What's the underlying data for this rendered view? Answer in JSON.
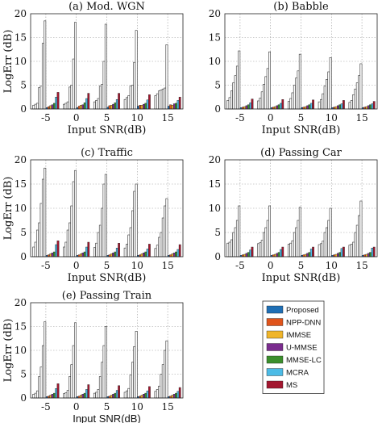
{
  "palette": {
    "outline_bar": "#ffffff",
    "Proposed": "#1f6fb5",
    "NPP-DNN": "#e0541b",
    "IMMSE": "#f0b52a",
    "U-MMSE": "#7a2c8e",
    "MMSE-LC": "#3b8f2c",
    "MCRA": "#4cbbe6",
    "MS": "#a3172f",
    "grid": "#9a9a9a",
    "axis": "#222222"
  },
  "legend": {
    "entries": [
      "Proposed",
      "NPP-DNN",
      "IMMSE",
      "U-MMSE",
      "MMSE-LC",
      "MCRA",
      "MS"
    ],
    "placement": "bottom-right"
  },
  "chart_data": [
    {
      "type": "bar",
      "title": "(a) Mod. WGN",
      "xlabel": "Input SNR(dB)",
      "ylabel": "LogErr (dB)",
      "categories": [
        "-5",
        "0",
        "5",
        "10",
        "15"
      ],
      "ylim": [
        0,
        20
      ],
      "yticks": [
        0,
        5,
        10,
        15,
        20
      ],
      "grid": true,
      "outline_series": [
        [
          0.8,
          1.0,
          1.2,
          4.5,
          4.8,
          13.8,
          18.5
        ],
        [
          1.0,
          1.2,
          1.5,
          4.6,
          5.0,
          10.5,
          18.2
        ],
        [
          1.5,
          1.8,
          2.2,
          4.8,
          5.2,
          10.0,
          17.8
        ],
        [
          2.0,
          2.4,
          2.8,
          4.8,
          5.0,
          9.8,
          16.5
        ],
        [
          2.8,
          3.2,
          3.8,
          4.0,
          4.2,
          4.4,
          13.5
        ]
      ],
      "colored_series": [
        {
          "name": "Proposed",
          "values": [
            0.3,
            0.3,
            0.4,
            0.6,
            0.6
          ]
        },
        {
          "name": "NPP-DNN",
          "values": [
            0.5,
            0.6,
            0.7,
            0.8,
            0.9
          ]
        },
        {
          "name": "IMMSE",
          "values": [
            0.7,
            0.8,
            0.8,
            0.8,
            0.8
          ]
        },
        {
          "name": "U-MMSE",
          "values": [
            0.9,
            0.9,
            1.0,
            1.0,
            1.1
          ]
        },
        {
          "name": "MMSE-LC",
          "values": [
            1.2,
            1.3,
            1.3,
            1.2,
            1.2
          ]
        },
        {
          "name": "MCRA",
          "values": [
            2.5,
            2.2,
            2.0,
            1.9,
            1.8
          ]
        },
        {
          "name": "MS",
          "values": [
            3.5,
            3.3,
            3.3,
            3.0,
            2.5
          ]
        }
      ]
    },
    {
      "type": "bar",
      "title": "(b) Babble",
      "xlabel": "Input SNR(dB)",
      "ylabel": "",
      "categories": [
        "-5",
        "0",
        "5",
        "10",
        "15"
      ],
      "ylim": [
        0,
        20
      ],
      "yticks": [
        0,
        5,
        10,
        15,
        20
      ],
      "grid": true,
      "outline_series": [
        [
          1.8,
          2.4,
          3.8,
          5.5,
          7.0,
          9.0,
          12.2
        ],
        [
          1.7,
          2.3,
          3.6,
          5.2,
          6.8,
          8.5,
          12.0
        ],
        [
          1.6,
          2.2,
          3.4,
          5.0,
          6.5,
          8.0,
          11.5
        ],
        [
          1.5,
          2.0,
          3.2,
          4.8,
          6.2,
          7.8,
          10.8
        ],
        [
          1.4,
          1.8,
          3.0,
          4.2,
          5.5,
          7.0,
          9.5
        ]
      ],
      "colored_series": [
        {
          "name": "Proposed",
          "values": [
            0.3,
            0.3,
            0.3,
            0.3,
            0.3
          ]
        },
        {
          "name": "NPP-DNN",
          "values": [
            0.4,
            0.4,
            0.4,
            0.4,
            0.4
          ]
        },
        {
          "name": "IMMSE",
          "values": [
            0.5,
            0.5,
            0.5,
            0.5,
            0.5
          ]
        },
        {
          "name": "U-MMSE",
          "values": [
            0.7,
            0.7,
            0.7,
            0.7,
            0.7
          ]
        },
        {
          "name": "MMSE-LC",
          "values": [
            0.9,
            0.9,
            0.9,
            0.9,
            0.9
          ]
        },
        {
          "name": "MCRA",
          "values": [
            1.3,
            1.2,
            1.2,
            1.1,
            1.1
          ]
        },
        {
          "name": "MS",
          "values": [
            2.1,
            2.0,
            1.9,
            1.8,
            1.6
          ]
        }
      ]
    },
    {
      "type": "bar",
      "title": "(c) Traffic",
      "xlabel": "Input SNR(dB)",
      "ylabel": "LogErr (dB)",
      "categories": [
        "-5",
        "0",
        "5",
        "10",
        "15"
      ],
      "ylim": [
        0,
        20
      ],
      "yticks": [
        0,
        5,
        10,
        15,
        20
      ],
      "grid": true,
      "outline_series": [
        [
          2.0,
          3.0,
          5.5,
          7.0,
          11.0,
          16.0,
          18.3
        ],
        [
          2.0,
          3.0,
          5.5,
          7.0,
          10.5,
          15.5,
          17.8
        ],
        [
          1.9,
          2.8,
          5.0,
          6.5,
          10.0,
          15.0,
          17.0
        ],
        [
          1.8,
          2.6,
          4.5,
          6.0,
          9.5,
          13.5,
          15.0
        ],
        [
          1.7,
          2.4,
          4.0,
          5.0,
          8.0,
          10.5,
          12.0
        ]
      ],
      "colored_series": [
        {
          "name": "Proposed",
          "values": [
            0.3,
            0.3,
            0.3,
            0.3,
            0.3
          ]
        },
        {
          "name": "NPP-DNN",
          "values": [
            0.4,
            0.4,
            0.4,
            0.4,
            0.4
          ]
        },
        {
          "name": "IMMSE",
          "values": [
            0.6,
            0.6,
            0.6,
            0.6,
            0.6
          ]
        },
        {
          "name": "U-MMSE",
          "values": [
            0.8,
            0.8,
            0.8,
            0.8,
            0.8
          ]
        },
        {
          "name": "MMSE-LC",
          "values": [
            1.0,
            1.0,
            1.0,
            1.0,
            1.0
          ]
        },
        {
          "name": "MCRA",
          "values": [
            2.5,
            2.0,
            1.8,
            1.6,
            1.5
          ]
        },
        {
          "name": "MS",
          "values": [
            3.3,
            3.0,
            2.8,
            2.6,
            2.5
          ]
        }
      ]
    },
    {
      "type": "bar",
      "title": "(d) Passing Car",
      "xlabel": "Input SNR(dB)",
      "ylabel": "",
      "categories": [
        "-5",
        "0",
        "5",
        "10",
        "15"
      ],
      "ylim": [
        0,
        20
      ],
      "yticks": [
        0,
        5,
        10,
        15,
        20
      ],
      "grid": true,
      "outline_series": [
        [
          2.8,
          3.0,
          3.5,
          5.0,
          6.0,
          7.5,
          10.5
        ],
        [
          2.7,
          2.9,
          3.4,
          5.0,
          6.0,
          7.5,
          10.5
        ],
        [
          2.6,
          2.8,
          3.3,
          5.0,
          6.0,
          7.5,
          10.2
        ],
        [
          2.5,
          2.7,
          3.2,
          5.0,
          6.0,
          7.5,
          10.0
        ],
        [
          2.4,
          2.6,
          3.0,
          5.0,
          6.5,
          8.5,
          11.5
        ]
      ],
      "colored_series": [
        {
          "name": "Proposed",
          "values": [
            0.3,
            0.3,
            0.3,
            0.3,
            0.3
          ]
        },
        {
          "name": "NPP-DNN",
          "values": [
            0.4,
            0.4,
            0.4,
            0.4,
            0.4
          ]
        },
        {
          "name": "IMMSE",
          "values": [
            0.5,
            0.5,
            0.5,
            0.5,
            0.5
          ]
        },
        {
          "name": "U-MMSE",
          "values": [
            0.7,
            0.7,
            0.7,
            0.7,
            0.7
          ]
        },
        {
          "name": "MMSE-LC",
          "values": [
            0.9,
            0.9,
            0.9,
            0.9,
            0.9
          ]
        },
        {
          "name": "MCRA",
          "values": [
            1.4,
            1.5,
            1.6,
            1.7,
            1.8
          ]
        },
        {
          "name": "MS",
          "values": [
            2.0,
            2.0,
            2.0,
            2.0,
            2.0
          ]
        }
      ]
    },
    {
      "type": "bar",
      "title": "(e) Passing Train",
      "xlabel": "Input SNR(dB)",
      "ylabel": "LogErr (dB)",
      "categories": [
        "-5",
        "0",
        "5",
        "10",
        "15"
      ],
      "ylim": [
        0,
        20
      ],
      "yticks": [
        0,
        5,
        10,
        15,
        20
      ],
      "grid": true,
      "outline_series": [
        [
          0.8,
          1.0,
          1.5,
          4.5,
          6.5,
          11.0,
          16.0
        ],
        [
          0.9,
          1.1,
          1.6,
          4.5,
          7.0,
          11.0,
          15.8
        ],
        [
          1.0,
          1.2,
          1.8,
          4.5,
          7.5,
          11.0,
          15.0
        ],
        [
          1.2,
          1.5,
          2.0,
          4.8,
          7.5,
          10.8,
          14.0
        ],
        [
          1.4,
          1.8,
          2.5,
          5.0,
          7.0,
          10.0,
          12.0
        ]
      ],
      "colored_series": [
        {
          "name": "Proposed",
          "values": [
            0.3,
            0.3,
            0.3,
            0.3,
            0.3
          ]
        },
        {
          "name": "NPP-DNN",
          "values": [
            0.4,
            0.4,
            0.4,
            0.4,
            0.4
          ]
        },
        {
          "name": "IMMSE",
          "values": [
            0.6,
            0.6,
            0.6,
            0.6,
            0.6
          ]
        },
        {
          "name": "U-MMSE",
          "values": [
            0.8,
            0.8,
            0.8,
            0.8,
            0.8
          ]
        },
        {
          "name": "MMSE-LC",
          "values": [
            1.0,
            1.0,
            1.0,
            1.0,
            1.0
          ]
        },
        {
          "name": "MCRA",
          "values": [
            2.0,
            1.8,
            1.6,
            1.5,
            1.4
          ]
        },
        {
          "name": "MS",
          "values": [
            3.0,
            2.8,
            2.6,
            2.4,
            2.2
          ]
        }
      ]
    }
  ]
}
